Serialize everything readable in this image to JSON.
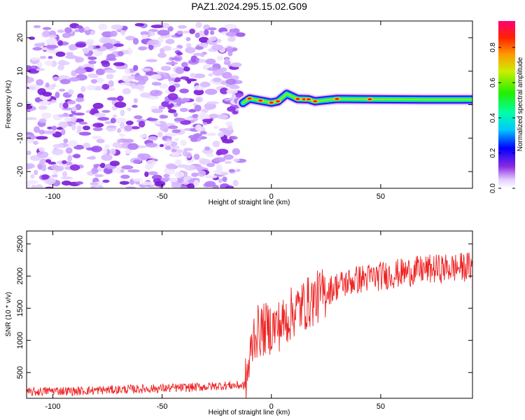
{
  "figure_title": "PAZ1.2024.295.15.02.G09",
  "colors": {
    "snr_line": "#ee2222",
    "noise_speckle": "#8a2be2",
    "background": "#ffffff"
  },
  "chart_data": [
    {
      "type": "heatmap",
      "name": "spectrogram",
      "xlabel": "Height of straight line (km)",
      "ylabel": "Frequency (Hz)",
      "xlim": [
        -112,
        92
      ],
      "ylim": [
        -25,
        25
      ],
      "x_ticks": [
        -100,
        -50,
        0,
        50
      ],
      "y_ticks": [
        -20,
        -10,
        0,
        10,
        20
      ],
      "grid": false,
      "noise_region": {
        "x": [
          -112,
          -14
        ],
        "y": [
          -25,
          24
        ]
      },
      "signal_track": [
        {
          "x": -13,
          "y": 0.5
        },
        {
          "x": -10,
          "y": 1.8
        },
        {
          "x": -5,
          "y": 1.2
        },
        {
          "x": 0,
          "y": 0.6
        },
        {
          "x": 3,
          "y": 1.0
        },
        {
          "x": 7,
          "y": 3.2
        },
        {
          "x": 12,
          "y": 1.7
        },
        {
          "x": 17,
          "y": 1.6
        },
        {
          "x": 20,
          "y": 1.0
        },
        {
          "x": 30,
          "y": 1.7
        },
        {
          "x": 50,
          "y": 1.6
        },
        {
          "x": 70,
          "y": 1.5
        },
        {
          "x": 92,
          "y": 1.5
        }
      ],
      "colorbar": {
        "label": "Normalized spectral amplitude",
        "range": [
          0.0,
          0.95
        ],
        "ticks": [
          "0.0",
          "0.2",
          "0.4",
          "0.6",
          "0.8"
        ],
        "tick_values": [
          0.0,
          0.2,
          0.4,
          0.6,
          0.8
        ]
      }
    },
    {
      "type": "line",
      "name": "snr",
      "xlabel": "Height of straight line (km)",
      "ylabel": "SNR (10 * v/v)",
      "xlim": [
        -112,
        92
      ],
      "ylim": [
        100,
        2700
      ],
      "x_ticks": [
        -100,
        -50,
        0,
        50
      ],
      "y_ticks": [
        500,
        1000,
        1500,
        2000,
        2500
      ],
      "grid": false,
      "series": [
        {
          "x": [
            -112,
            -100,
            -90,
            -80,
            -70,
            -60,
            -50,
            -40,
            -30,
            -20,
            -12,
            -10,
            -8,
            -5,
            0,
            5,
            10,
            15,
            20,
            25,
            30,
            40,
            50,
            60,
            70,
            80,
            92
          ],
          "y": [
            190,
            220,
            210,
            225,
            235,
            245,
            255,
            265,
            280,
            300,
            300,
            650,
            1100,
            1150,
            1200,
            1250,
            1450,
            1550,
            1650,
            1750,
            1850,
            1950,
            2000,
            2050,
            2100,
            2120,
            2150
          ]
        }
      ]
    }
  ]
}
